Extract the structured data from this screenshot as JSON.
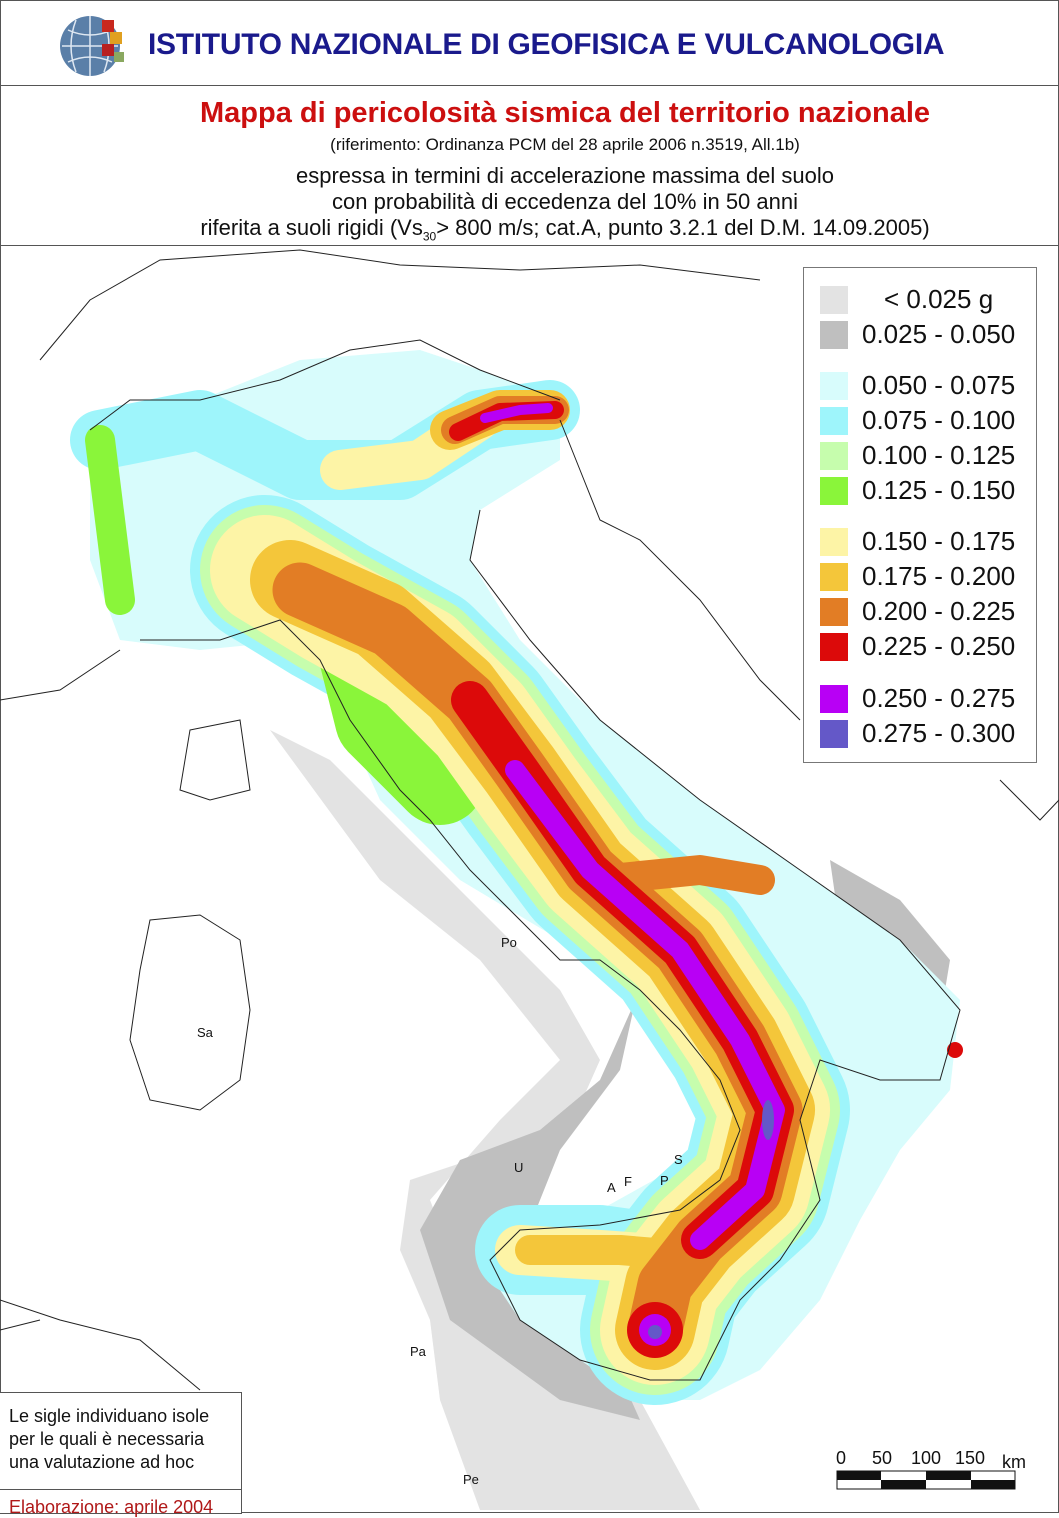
{
  "header": {
    "institute": "ISTITUTO NAZIONALE DI GEOFISICA E VULCANOLOGIA",
    "logo": "ingv-globe-logo"
  },
  "titles": {
    "title": "Mappa di pericolosità sismica del territorio nazionale",
    "reference": "(riferimento: Ordinanza PCM del 28 aprile 2006 n.3519, All.1b)",
    "line1": "espressa in termini di accelerazione massima del suolo",
    "line2": "con probabilità di eccedenza del 10% in 50 anni",
    "line3_a": "riferita a suoli rigidi (Vs",
    "line3_sub": "30",
    "line3_b": "> 800 m/s; cat.A, punto 3.2.1 del D.M. 14.09.2005)"
  },
  "legend": [
    {
      "label": "< 0.025 g",
      "color": "#e3e3e3"
    },
    {
      "label": "0.025 - 0.050",
      "color": "#bfbfbf"
    },
    {
      "label": "0.050 - 0.075",
      "color": "#d8fcfc"
    },
    {
      "label": "0.075 - 0.100",
      "color": "#9ef5fb"
    },
    {
      "label": "0.100 - 0.125",
      "color": "#c6fdad"
    },
    {
      "label": "0.125 - 0.150",
      "color": "#8af53a"
    },
    {
      "label": "0.150 - 0.175",
      "color": "#fdf4a6"
    },
    {
      "label": "0.175 - 0.200",
      "color": "#f4c63a"
    },
    {
      "label": "0.200 - 0.225",
      "color": "#e27d25"
    },
    {
      "label": "0.225 - 0.250",
      "color": "#dc0a0a"
    },
    {
      "label": "0.250 - 0.275",
      "color": "#b800f5"
    },
    {
      "label": "0.275 - 0.300",
      "color": "#6458c8"
    }
  ],
  "islands": [
    {
      "code": "Po"
    },
    {
      "code": "Sa"
    },
    {
      "code": "U"
    },
    {
      "code": "A"
    },
    {
      "code": "F"
    },
    {
      "code": "P"
    },
    {
      "code": "S"
    },
    {
      "code": "Pa"
    },
    {
      "code": "Pe"
    }
  ],
  "note": {
    "text1": "Le sigle individuano isole",
    "text2": "per le quali è necessaria",
    "text3": "una valutazione ad hoc",
    "elaboration": "Elaborazione: aprile 2004"
  },
  "scale_bar": {
    "ticks": [
      "0",
      "50",
      "100",
      "150"
    ],
    "unit": "km"
  }
}
